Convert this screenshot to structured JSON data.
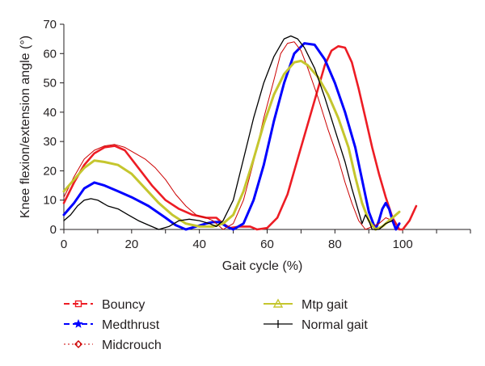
{
  "chart_data": {
    "type": "line",
    "xlabel": "Gait cycle (%)",
    "ylabel": "Knee flexion/extension angle (°)",
    "xlim": [
      0,
      120
    ],
    "ylim": [
      0,
      70
    ],
    "xticks": [
      "0",
      "20",
      "40",
      "60",
      "80",
      "100"
    ],
    "yticks": [
      "0",
      "10",
      "20",
      "30",
      "40",
      "50",
      "60",
      "70"
    ],
    "grid": false,
    "legend_position": "bottom",
    "series": [
      {
        "name": "Bouncy",
        "color": "#ed1c24",
        "stroke_width": 2.6,
        "marker": "square",
        "points": [
          [
            0,
            9
          ],
          [
            3,
            16
          ],
          [
            6,
            22
          ],
          [
            9,
            26
          ],
          [
            12,
            28
          ],
          [
            15,
            28.5
          ],
          [
            18,
            27
          ],
          [
            22,
            21
          ],
          [
            26,
            15
          ],
          [
            30,
            10
          ],
          [
            34,
            7
          ],
          [
            38,
            5
          ],
          [
            42,
            4
          ],
          [
            45,
            4
          ],
          [
            47,
            2
          ],
          [
            49,
            0.5
          ],
          [
            52,
            1
          ],
          [
            55,
            1
          ],
          [
            57,
            0
          ],
          [
            60,
            0.5
          ],
          [
            63,
            4
          ],
          [
            66,
            12
          ],
          [
            69,
            24
          ],
          [
            72,
            36
          ],
          [
            75,
            48
          ],
          [
            77,
            56
          ],
          [
            79,
            61
          ],
          [
            81,
            62.5
          ],
          [
            83,
            62
          ],
          [
            85,
            57
          ],
          [
            87,
            48
          ],
          [
            89,
            38
          ],
          [
            91,
            28
          ],
          [
            93,
            19
          ],
          [
            95,
            11
          ],
          [
            97,
            4
          ],
          [
            99,
            0
          ],
          [
            100,
            0
          ],
          [
            102,
            3
          ],
          [
            104,
            8
          ]
        ]
      },
      {
        "name": "Medthrust",
        "color": "#0000ff",
        "stroke_width": 3,
        "marker": "star",
        "points": [
          [
            0,
            5
          ],
          [
            3,
            9
          ],
          [
            6,
            14
          ],
          [
            9,
            16
          ],
          [
            12,
            15
          ],
          [
            16,
            13
          ],
          [
            20,
            11
          ],
          [
            25,
            8
          ],
          [
            30,
            4
          ],
          [
            33,
            1.5
          ],
          [
            36,
            0
          ],
          [
            39,
            1
          ],
          [
            42,
            2
          ],
          [
            44,
            2.5
          ],
          [
            46,
            2.5
          ],
          [
            48,
            1
          ],
          [
            50,
            0
          ],
          [
            53,
            2
          ],
          [
            56,
            10
          ],
          [
            59,
            22
          ],
          [
            62,
            37
          ],
          [
            65,
            50
          ],
          [
            68,
            60
          ],
          [
            71,
            63.5
          ],
          [
            74,
            63
          ],
          [
            77,
            58
          ],
          [
            80,
            50
          ],
          [
            83,
            40
          ],
          [
            86,
            28
          ],
          [
            88,
            17
          ],
          [
            90,
            6
          ],
          [
            92,
            0
          ],
          [
            93,
            3
          ],
          [
            94,
            7
          ],
          [
            95,
            9
          ],
          [
            96,
            7
          ],
          [
            97,
            3
          ],
          [
            98,
            0
          ],
          [
            99,
            2
          ]
        ]
      },
      {
        "name": "Midcrouch",
        "color": "#cc0000",
        "stroke_width": 1,
        "marker": "diamond",
        "points": [
          [
            0,
            11
          ],
          [
            3,
            18
          ],
          [
            6,
            24
          ],
          [
            9,
            27
          ],
          [
            12,
            28.5
          ],
          [
            15,
            29
          ],
          [
            18,
            28
          ],
          [
            21,
            26
          ],
          [
            24,
            24
          ],
          [
            27,
            21
          ],
          [
            30,
            17
          ],
          [
            33,
            12
          ],
          [
            36,
            8
          ],
          [
            39,
            5
          ],
          [
            42,
            4
          ],
          [
            44,
            3
          ],
          [
            46,
            1
          ],
          [
            47,
            0
          ],
          [
            50,
            2
          ],
          [
            53,
            10
          ],
          [
            56,
            23
          ],
          [
            59,
            38
          ],
          [
            62,
            51
          ],
          [
            64,
            60
          ],
          [
            66,
            63.5
          ],
          [
            68,
            64
          ],
          [
            70,
            61
          ],
          [
            72,
            55
          ],
          [
            75,
            45
          ],
          [
            78,
            34
          ],
          [
            81,
            24
          ],
          [
            83,
            16
          ],
          [
            85,
            9
          ],
          [
            87,
            3
          ],
          [
            89,
            0
          ],
          [
            91,
            1
          ],
          [
            93,
            2
          ],
          [
            95,
            4
          ],
          [
            97,
            3
          ]
        ]
      },
      {
        "name": "Mtp gait",
        "color": "#c5c62e",
        "stroke_width": 3,
        "marker": "triangle",
        "points": [
          [
            0,
            13
          ],
          [
            3,
            17
          ],
          [
            6,
            21
          ],
          [
            9,
            23.5
          ],
          [
            12,
            23
          ],
          [
            16,
            22
          ],
          [
            20,
            19
          ],
          [
            24,
            14
          ],
          [
            28,
            9
          ],
          [
            32,
            5
          ],
          [
            36,
            2
          ],
          [
            40,
            1
          ],
          [
            44,
            1
          ],
          [
            47,
            2
          ],
          [
            50,
            5
          ],
          [
            53,
            13
          ],
          [
            56,
            24
          ],
          [
            59,
            36
          ],
          [
            62,
            46
          ],
          [
            65,
            53
          ],
          [
            68,
            57
          ],
          [
            70,
            57.5
          ],
          [
            72,
            56
          ],
          [
            75,
            52
          ],
          [
            78,
            46
          ],
          [
            81,
            38
          ],
          [
            84,
            28
          ],
          [
            86,
            18
          ],
          [
            88,
            9
          ],
          [
            90,
            3
          ],
          [
            92,
            0
          ],
          [
            94,
            1
          ],
          [
            96,
            3
          ],
          [
            98,
            5
          ],
          [
            99,
            6
          ]
        ]
      },
      {
        "name": "Normal gait",
        "color": "#000000",
        "stroke_width": 1.3,
        "marker": "plus",
        "points": [
          [
            0,
            3
          ],
          [
            2,
            5
          ],
          [
            4,
            8
          ],
          [
            6,
            10
          ],
          [
            8,
            10.5
          ],
          [
            10,
            10
          ],
          [
            13,
            8
          ],
          [
            16,
            7
          ],
          [
            19,
            5
          ],
          [
            22,
            3
          ],
          [
            25,
            1.5
          ],
          [
            28,
            0
          ],
          [
            31,
            1
          ],
          [
            34,
            3
          ],
          [
            37,
            3.5
          ],
          [
            40,
            3
          ],
          [
            43,
            2
          ],
          [
            45,
            1
          ],
          [
            47,
            3
          ],
          [
            50,
            10
          ],
          [
            53,
            24
          ],
          [
            56,
            38
          ],
          [
            59,
            50
          ],
          [
            62,
            59
          ],
          [
            65,
            65
          ],
          [
            67,
            66
          ],
          [
            69,
            65
          ],
          [
            71,
            62
          ],
          [
            74,
            55
          ],
          [
            77,
            45
          ],
          [
            80,
            34
          ],
          [
            83,
            23
          ],
          [
            85,
            14
          ],
          [
            87,
            6
          ],
          [
            88,
            2
          ],
          [
            89,
            5
          ],
          [
            90,
            3
          ],
          [
            91,
            0
          ],
          [
            93,
            0
          ],
          [
            95,
            2
          ],
          [
            97,
            3
          ]
        ]
      }
    ]
  }
}
